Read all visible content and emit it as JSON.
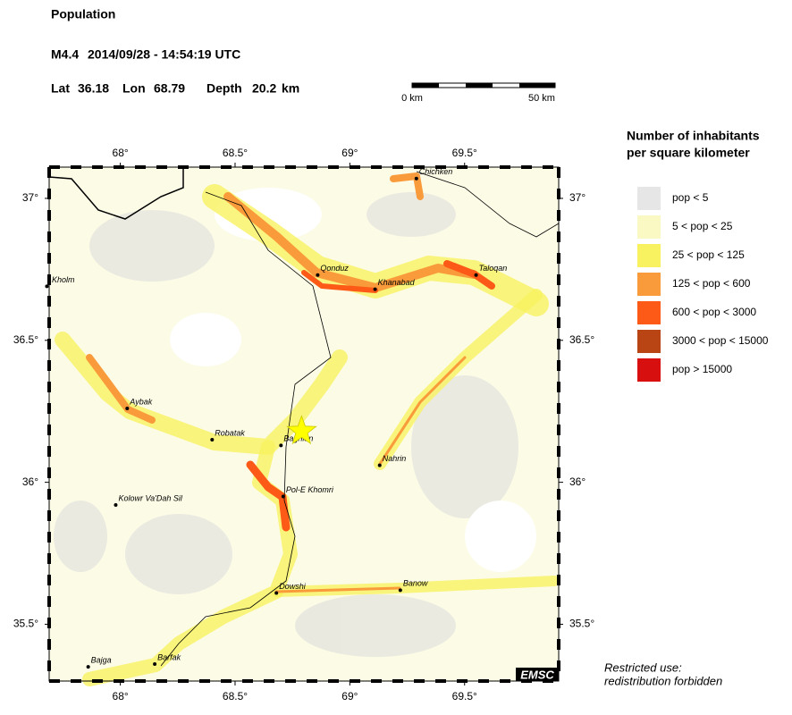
{
  "header": {
    "title": "Population",
    "magnitude": "M4.4",
    "datetime": "2014/09/28 - 14:54:19 UTC",
    "lat_label": "Lat",
    "lon_label": "Lon",
    "depth_label": "Depth",
    "depth_unit": "km"
  },
  "epicenter": {
    "lat": 36.18,
    "lon": 68.79,
    "depth": 20.2
  },
  "scale_bar": {
    "start_label": "0 km",
    "end_label": "50 km"
  },
  "map": {
    "xlim": [
      67.69,
      69.91
    ],
    "ylim": [
      35.3,
      37.11
    ],
    "xticks": [
      {
        "value": 68,
        "label": "68°"
      },
      {
        "value": 68.5,
        "label": "68.5°"
      },
      {
        "value": 69,
        "label": "69°"
      },
      {
        "value": 69.5,
        "label": "69.5°"
      }
    ],
    "yticks": [
      {
        "value": 37,
        "label": "37°"
      },
      {
        "value": 36.5,
        "label": "36.5°"
      },
      {
        "value": 36,
        "label": "36°"
      },
      {
        "value": 35.5,
        "label": "35.5°"
      }
    ],
    "cities": [
      {
        "name": "Chichken",
        "lon": 69.29,
        "lat": 37.07
      },
      {
        "name": "Qonduz",
        "lon": 68.86,
        "lat": 36.73
      },
      {
        "name": "Khanabad",
        "lon": 69.11,
        "lat": 36.68
      },
      {
        "name": "Taloqan",
        "lon": 69.55,
        "lat": 36.73
      },
      {
        "name": "Kholm",
        "lon": 67.68,
        "lat": 36.69
      },
      {
        "name": "Aybak",
        "lon": 68.03,
        "lat": 36.26
      },
      {
        "name": "Robatak",
        "lon": 68.4,
        "lat": 36.15
      },
      {
        "name": "Baghlan",
        "lon": 68.7,
        "lat": 36.13
      },
      {
        "name": "Nahrin",
        "lon": 69.13,
        "lat": 36.06
      },
      {
        "name": "Pol-E Khomri",
        "lon": 68.71,
        "lat": 35.95
      },
      {
        "name": "Kolowr Va'Dah Sil",
        "lon": 67.98,
        "lat": 35.92
      },
      {
        "name": "Dowshi",
        "lon": 68.68,
        "lat": 35.61
      },
      {
        "name": "Banow",
        "lon": 69.22,
        "lat": 35.62
      },
      {
        "name": "Bajga",
        "lon": 67.86,
        "lat": 35.35
      },
      {
        "name": "Barfak",
        "lon": 68.15,
        "lat": 35.36
      }
    ],
    "credit": "EMSC"
  },
  "legend": {
    "title_line1": "Number of inhabitants",
    "title_line2": "per square kilometer",
    "items": [
      {
        "label": "pop < 5",
        "color": "#e6e6e6"
      },
      {
        "label": "5 < pop < 25",
        "color": "#fbf9c3"
      },
      {
        "label": "25 < pop < 125",
        "color": "#f8f260"
      },
      {
        "label": "125 < pop < 600",
        "color": "#f99b3a"
      },
      {
        "label": "600 < pop < 3000",
        "color": "#fc5a16"
      },
      {
        "label": "3000 < pop < 15000",
        "color": "#b94515"
      },
      {
        "label": "pop > 15000",
        "color": "#d80f0f"
      }
    ]
  },
  "notice": {
    "line1": "Restricted use:",
    "line2": "redistribution forbidden"
  }
}
